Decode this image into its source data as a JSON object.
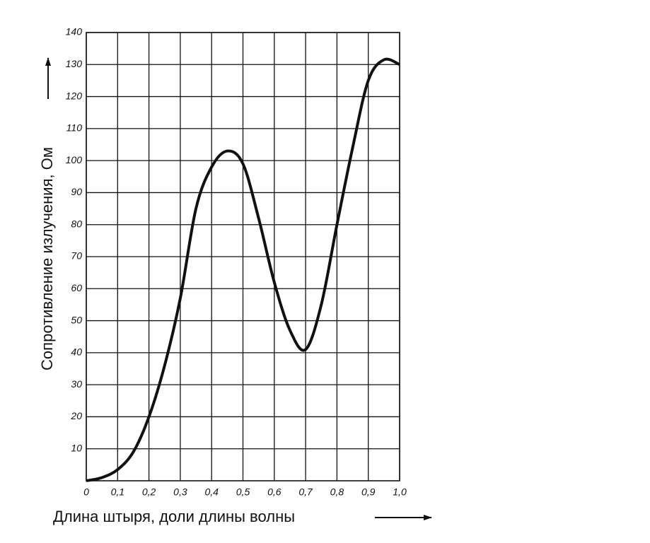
{
  "chart_data": {
    "type": "line",
    "x_label": "Длина штыря, доли длины волны",
    "y_label": "Сопротивление излучения, Ом",
    "x": [
      0,
      0.05,
      0.1,
      0.15,
      0.2,
      0.25,
      0.3,
      0.35,
      0.4,
      0.45,
      0.5,
      0.55,
      0.6,
      0.65,
      0.7,
      0.75,
      0.8,
      0.85,
      0.9,
      0.95,
      1.0
    ],
    "values": [
      0,
      1,
      3.5,
      9,
      20,
      36,
      57,
      85,
      98,
      103,
      99,
      82,
      62,
      47,
      41,
      55,
      80,
      104,
      125,
      131.5,
      130
    ],
    "color": "#111111",
    "xlim": [
      0,
      1.0
    ],
    "xticks": [
      {
        "value": 0,
        "label": "0"
      },
      {
        "value": 0.1,
        "label": "0,1"
      },
      {
        "value": 0.2,
        "label": "0,2"
      },
      {
        "value": 0.3,
        "label": "0,3"
      },
      {
        "value": 0.4,
        "label": "0,4"
      },
      {
        "value": 0.5,
        "label": "0,5"
      },
      {
        "value": 0.6,
        "label": "0,6"
      },
      {
        "value": 0.7,
        "label": "0,7"
      },
      {
        "value": 0.8,
        "label": "0,8"
      },
      {
        "value": 0.9,
        "label": "0,9"
      },
      {
        "value": 1.0,
        "label": "1,0"
      }
    ],
    "ylim": [
      0,
      140
    ],
    "yticks": [
      10,
      20,
      30,
      40,
      50,
      60,
      70,
      80,
      90,
      100,
      110,
      120,
      130,
      140
    ],
    "grid": true
  }
}
